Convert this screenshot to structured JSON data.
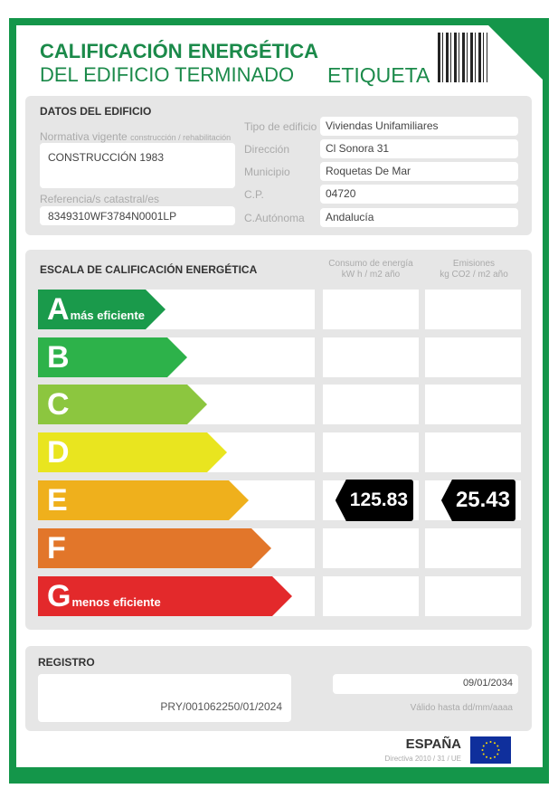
{
  "header": {
    "title1": "CALIFICACIÓN ENERGÉTICA",
    "title2": "DEL EDIFICIO TERMINADO",
    "label": "ETIQUETA"
  },
  "datos": {
    "heading": "DATOS DEL EDIFICIO",
    "normativa_label": "Normativa vigente",
    "normativa_sub": "construcción / rehabilitación",
    "normativa_value": "CONSTRUCCIÓN 1983",
    "ref_label": "Referencia/s catastral/es",
    "ref_value": "8349310WF3784N0001LP",
    "fields": [
      {
        "label": "Tipo de edificio",
        "value": "Viviendas Unifamiliares"
      },
      {
        "label": "Dirección",
        "value": "Cl Sonora 31"
      },
      {
        "label": "Municipio",
        "value": "Roquetas De Mar"
      },
      {
        "label": "C.P.",
        "value": "04720"
      },
      {
        "label": "C.Autónoma",
        "value": "Andalucía"
      }
    ]
  },
  "escala": {
    "heading": "ESCALA DE CALIFICACIÓN ENERGÉTICA",
    "col1_title": "Consumo de energía",
    "col1_unit": "kW h / m2 año",
    "col2_title": "Emisiones",
    "col2_unit": "kg CO2 / m2 año",
    "classes": [
      {
        "letter": "A",
        "note": "más eficiente",
        "color": "#1a9a4b"
      },
      {
        "letter": "B",
        "note": "",
        "color": "#2db24a"
      },
      {
        "letter": "C",
        "note": "",
        "color": "#8cc63f"
      },
      {
        "letter": "D",
        "note": "",
        "color": "#e9e51f"
      },
      {
        "letter": "E",
        "note": "",
        "color": "#efb01c"
      },
      {
        "letter": "F",
        "note": "",
        "color": "#e2762a"
      },
      {
        "letter": "G",
        "note": "menos eficiente",
        "color": "#e3292b"
      }
    ],
    "rating": {
      "class": "E",
      "consumo": "125.83",
      "emisiones": "25.43"
    }
  },
  "registro": {
    "heading": "REGISTRO",
    "number": "PRY/001062250/01/2024",
    "valid_date": "09/01/2034",
    "valid_label": "Válido hasta dd/mm/aaaa"
  },
  "footer": {
    "country": "ESPAÑA",
    "directive": "Directiva 2010 / 31 / UE"
  },
  "colors": {
    "brand_green": "#14964a",
    "panel": "#e6e6e6"
  }
}
